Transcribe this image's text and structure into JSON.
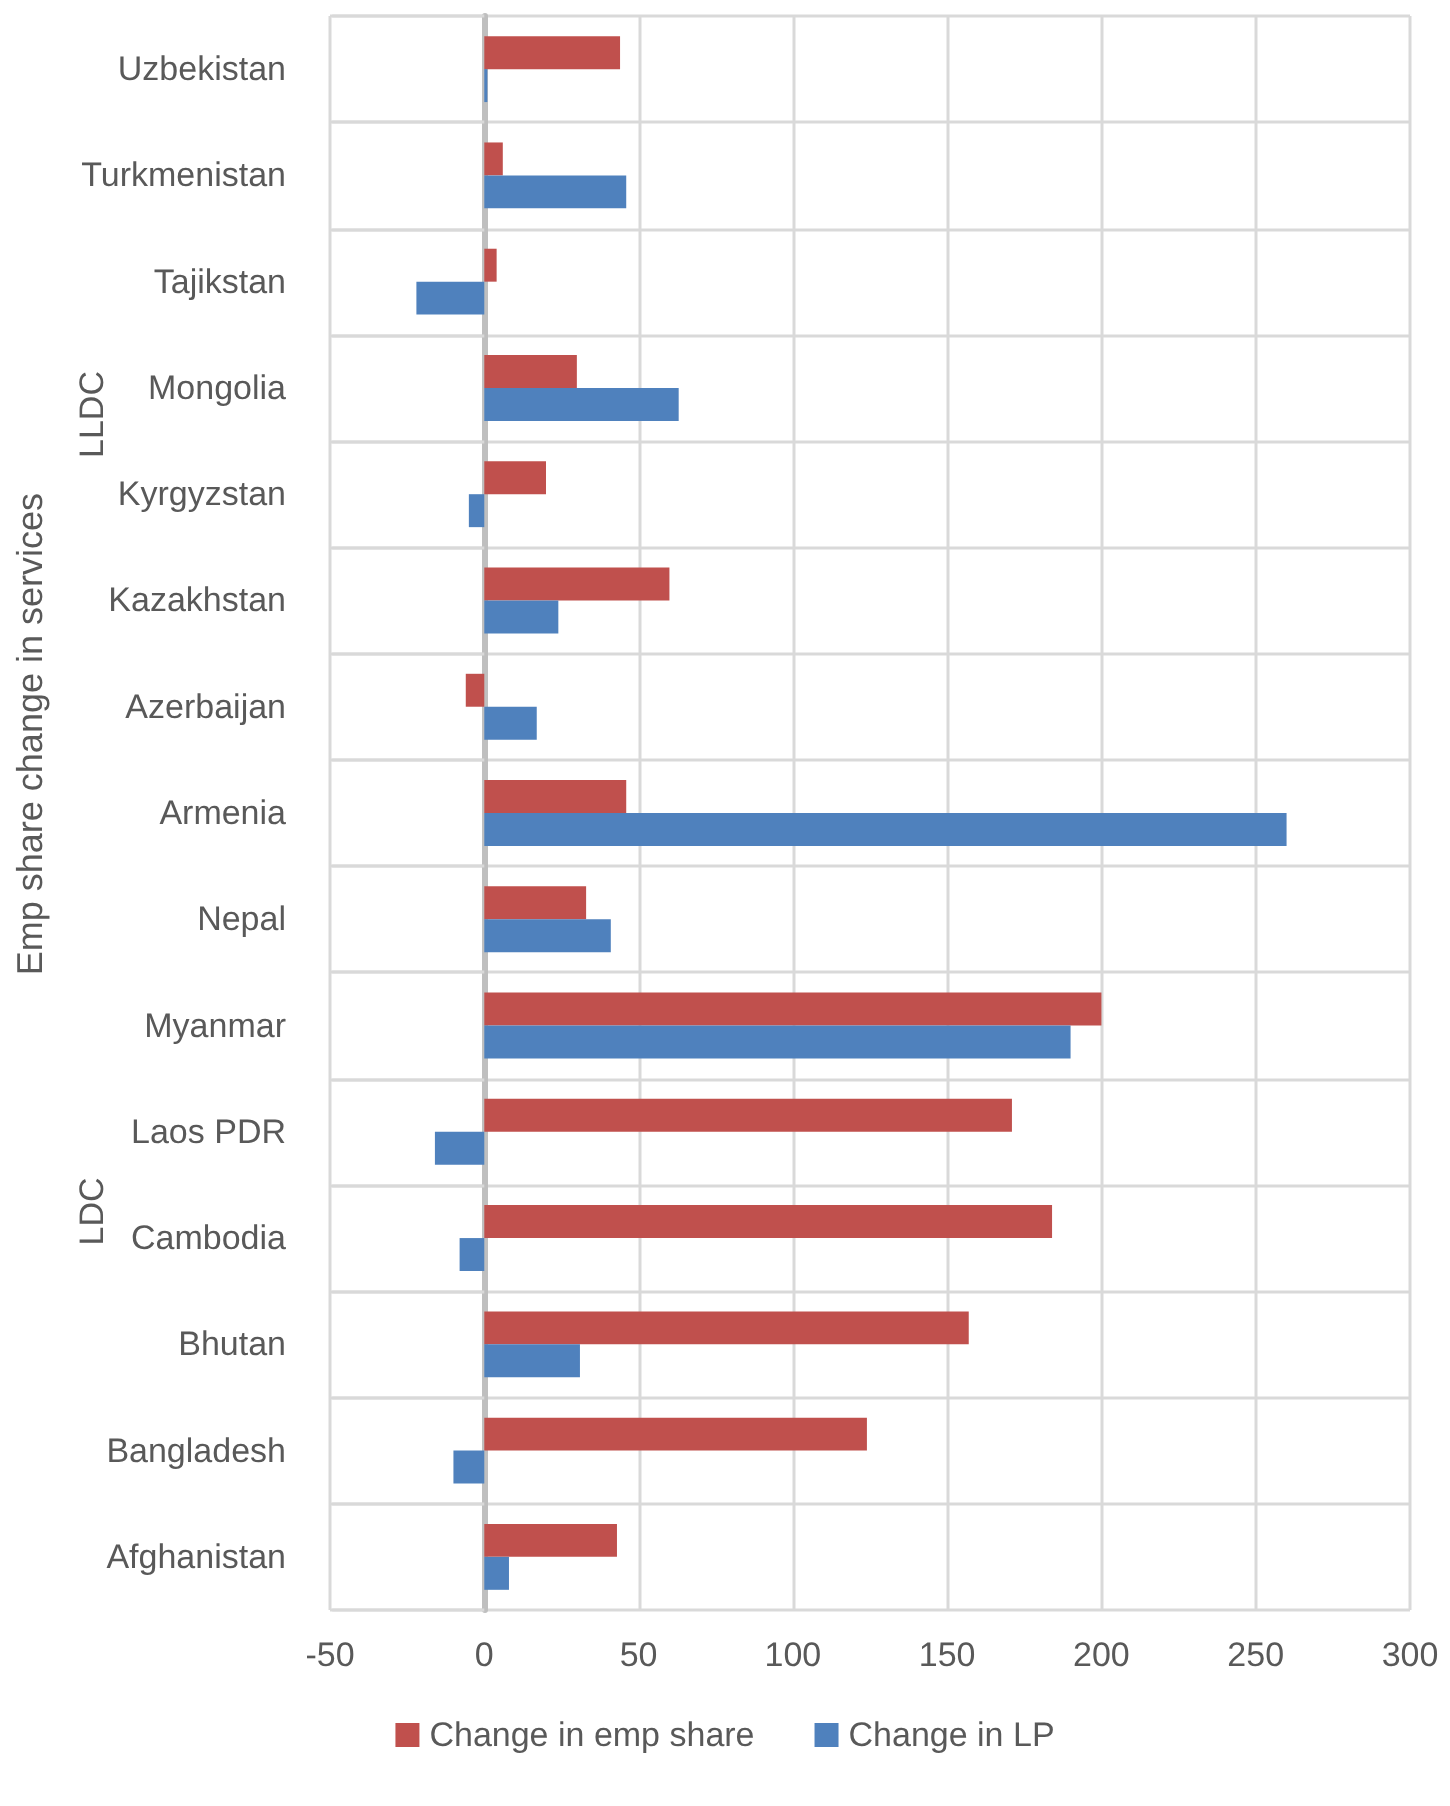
{
  "chart_data": {
    "type": "bar",
    "orientation": "horizontal",
    "ylabel": "Emp share change in services",
    "annotations": [
      "LLDC",
      "LDC"
    ],
    "categories": [
      "Uzbekistan",
      "Turkmenistan",
      "Tajikstan",
      "Mongolia",
      "Kyrgyzstan",
      "Kazakhstan",
      "Azerbaijan",
      "Armenia",
      "Nepal",
      "Myanmar",
      "Laos PDR",
      "Cambodia",
      "Bhutan",
      "Bangladesh",
      "Afghanistan"
    ],
    "series": [
      {
        "name": "Change in emp share",
        "color": "#c0504d",
        "values": [
          44,
          6,
          4,
          30,
          20,
          60,
          -6,
          46,
          33,
          200,
          171,
          184,
          157,
          124,
          43
        ]
      },
      {
        "name": "Change in LP",
        "color": "#4f81bd",
        "values": [
          1,
          46,
          -22,
          63,
          -5,
          24,
          17,
          260,
          41,
          190,
          -16,
          -8,
          31,
          -10,
          8
        ]
      }
    ],
    "xlim": [
      -50,
      300
    ],
    "xticks": [
      -50,
      0,
      50,
      100,
      150,
      200,
      250,
      300
    ],
    "grid": true,
    "legend": "bottom"
  }
}
